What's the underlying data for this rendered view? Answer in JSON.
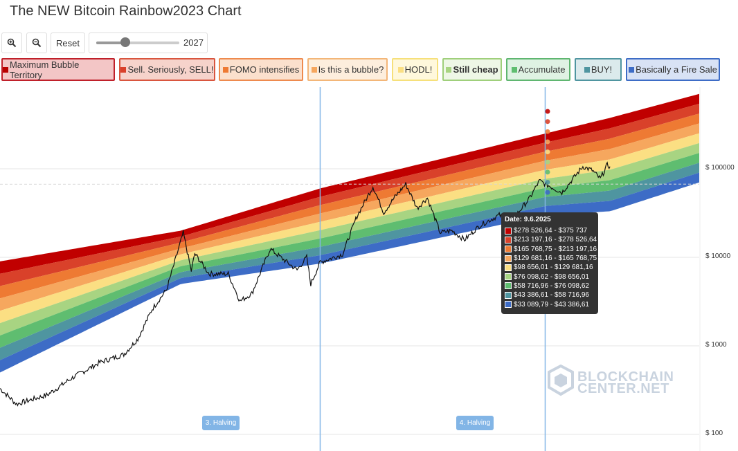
{
  "title": "The NEW Bitcoin Rainbow2023 Chart",
  "toolbar": {
    "zoom_in_icon": "zoom-in-icon",
    "zoom_out_icon": "zoom-out-icon",
    "reset_label": "Reset",
    "slider_value": "2027",
    "slider_fraction": 0.35
  },
  "legend": [
    {
      "label": "Maximum Bubble Territory",
      "color": "#b90000",
      "bg": "#f3c6c6",
      "border": "#c0202a"
    },
    {
      "label": "Sell. Seriously, SELL!",
      "color": "#d9412a",
      "bg": "#f6d3cb",
      "border": "#d9553e"
    },
    {
      "label": "FOMO intensifies",
      "color": "#ee7a33",
      "bg": "#fbe0cd",
      "border": "#ee8a4e"
    },
    {
      "label": "Is this a bubble?",
      "color": "#f6a75e",
      "bg": "#fdeedd",
      "border": "#f3b678"
    },
    {
      "label": "HODL!",
      "color": "#fbdf83",
      "bg": "#fff8dc",
      "border": "#f6e07a"
    },
    {
      "label": "Still cheap",
      "color": "#a8d482",
      "bg": "#eef7e6",
      "border": "#9fcf7b",
      "bold": true
    },
    {
      "label": "Accumulate",
      "color": "#5fbd70",
      "bg": "#dff2e3",
      "border": "#5fb670"
    },
    {
      "label": "BUY!",
      "color": "#4f95a0",
      "bg": "#dbeaec",
      "border": "#4f95a0"
    },
    {
      "label": "Basically a Fire Sale",
      "color": "#3d6cc6",
      "bg": "#d8e2f5",
      "border": "#3d6cc6"
    }
  ],
  "tooltip": {
    "date": "Date: 9.6.2025",
    "rows": [
      {
        "color": "#c00000",
        "text": "$278 526,64 - $375 737"
      },
      {
        "color": "#d9412a",
        "text": "$213 197,16 - $278 526,64"
      },
      {
        "color": "#ee7a33",
        "text": "$165 768,75 - $213 197,16"
      },
      {
        "color": "#f6a75e",
        "text": "$129 681,16 - $165 768,75"
      },
      {
        "color": "#fbdf83",
        "text": "$98 656,01 - $129 681,16"
      },
      {
        "color": "#a8d482",
        "text": "$76 098,62 - $98 656,01"
      },
      {
        "color": "#5fbd70",
        "text": "$58 716,96 - $76 098,62"
      },
      {
        "color": "#4f95a0",
        "text": "$43 386,61 - $58 716,96"
      },
      {
        "color": "#3d6cc6",
        "text": "$33 089,79 - $43 386,61"
      }
    ]
  },
  "halvings": [
    "3. Halving",
    "4. Halving"
  ],
  "logo": {
    "line1": "BLOCKCHAIN",
    "line2": "CENTER.NET"
  },
  "chart_data": {
    "type": "area",
    "title": "The NEW Bitcoin Rainbow2023 Chart",
    "y_scale": "log",
    "ylim": [
      100,
      100000
    ],
    "y_ticks": [
      "$ 100000",
      "$ 10000",
      "$ 1000",
      "$ 100"
    ],
    "x_range": [
      "2014-10-01",
      "2027-01-01"
    ],
    "band_colors": [
      "#c00000",
      "#d9412a",
      "#ee7a33",
      "#f6a75e",
      "#fbdf83",
      "#a8d482",
      "#5fbd70",
      "#4f95a0",
      "#3d6cc6"
    ],
    "band_edges_at_2014_10": [
      1700,
      3650,
      5000,
      7000
    ],
    "band_edges": [
      {
        "date": "2014-10-01",
        "bottom": 500,
        "top": 9000
      },
      {
        "date": "2017-12-01",
        "bottom": 5000,
        "top": 20000
      },
      {
        "date": "2020-05-11",
        "bottom": 8500,
        "top": 60000
      },
      {
        "date": "2024-04-20",
        "bottom": 30000,
        "top": 250000
      },
      {
        "date": "2025-06-09",
        "bottom": 33089.79,
        "top": 375737
      },
      {
        "date": "2026-12-31",
        "bottom": 70000,
        "top": 700000
      }
    ],
    "price_series": [
      {
        "date": "2014-10-01",
        "value": 330
      },
      {
        "date": "2015-01-15",
        "value": 220
      },
      {
        "date": "2015-08-01",
        "value": 280
      },
      {
        "date": "2016-01-01",
        "value": 430
      },
      {
        "date": "2016-07-01",
        "value": 650
      },
      {
        "date": "2016-12-01",
        "value": 800
      },
      {
        "date": "2017-03-01",
        "value": 1200
      },
      {
        "date": "2017-06-01",
        "value": 2600
      },
      {
        "date": "2017-09-01",
        "value": 4300
      },
      {
        "date": "2017-12-17",
        "value": 19000
      },
      {
        "date": "2018-02-06",
        "value": 7000
      },
      {
        "date": "2018-03-01",
        "value": 11000
      },
      {
        "date": "2018-06-01",
        "value": 6500
      },
      {
        "date": "2018-10-01",
        "value": 6500
      },
      {
        "date": "2018-12-15",
        "value": 3200
      },
      {
        "date": "2019-03-01",
        "value": 3900
      },
      {
        "date": "2019-06-26",
        "value": 12500
      },
      {
        "date": "2019-09-01",
        "value": 10000
      },
      {
        "date": "2019-12-15",
        "value": 7200
      },
      {
        "date": "2020-02-15",
        "value": 10000
      },
      {
        "date": "2020-03-12",
        "value": 5000
      },
      {
        "date": "2020-05-11",
        "value": 8800
      },
      {
        "date": "2020-10-01",
        "value": 10800
      },
      {
        "date": "2021-01-01",
        "value": 29000
      },
      {
        "date": "2021-04-14",
        "value": 63000
      },
      {
        "date": "2021-06-22",
        "value": 32000
      },
      {
        "date": "2021-09-01",
        "value": 48000
      },
      {
        "date": "2021-11-10",
        "value": 67000
      },
      {
        "date": "2022-01-22",
        "value": 36000
      },
      {
        "date": "2022-03-28",
        "value": 47000
      },
      {
        "date": "2022-06-18",
        "value": 19000
      },
      {
        "date": "2022-09-01",
        "value": 20000
      },
      {
        "date": "2022-11-21",
        "value": 15800
      },
      {
        "date": "2023-03-01",
        "value": 23000
      },
      {
        "date": "2023-07-01",
        "value": 30000
      },
      {
        "date": "2023-09-11",
        "value": 25000
      },
      {
        "date": "2024-01-10",
        "value": 46000
      },
      {
        "date": "2024-03-14",
        "value": 73000
      },
      {
        "date": "2024-08-05",
        "value": 54000
      },
      {
        "date": "2024-12-17",
        "value": 106000
      },
      {
        "date": "2025-02-15",
        "value": 96000
      },
      {
        "date": "2025-04-08",
        "value": 77000
      },
      {
        "date": "2025-05-22",
        "value": 110000
      },
      {
        "date": "2025-06-09",
        "value": 106000
      }
    ],
    "halving_dates": [
      "2020-05-11",
      "2024-04-20"
    ],
    "reference_value": 67000
  }
}
